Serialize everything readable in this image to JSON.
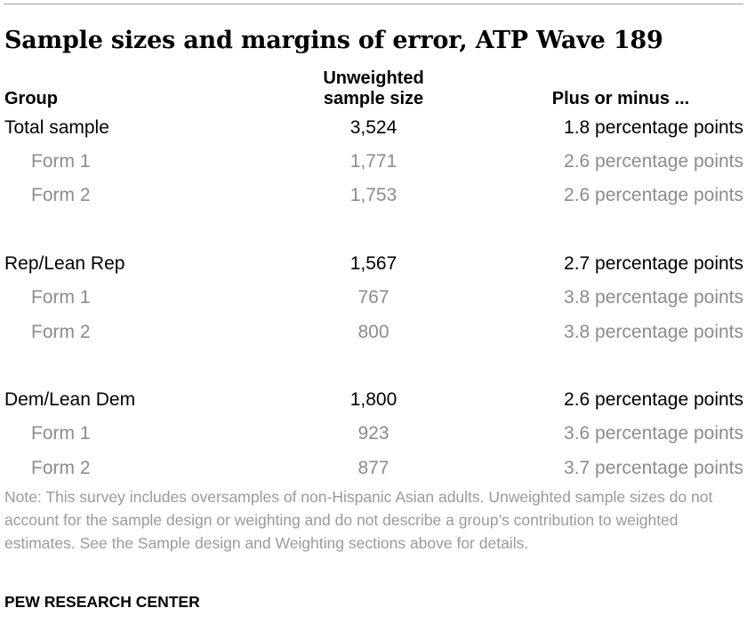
{
  "title": "Sample sizes and margins of error, ATP Wave 189",
  "headers": {
    "group": "Group",
    "size_line1": "Unweighted",
    "size_line2": "sample size",
    "moe": "Plus or minus ..."
  },
  "rows": [
    {
      "group": "Total sample",
      "size": "3,524",
      "moe": "1.8 percentage points"
    },
    {
      "group": "Form 1",
      "size": "1,771",
      "moe": "2.6 percentage points"
    },
    {
      "group": "Form 2",
      "size": "1,753",
      "moe": "2.6 percentage points"
    },
    {
      "group": "Rep/Lean Rep",
      "size": "1,567",
      "moe": "2.7 percentage points"
    },
    {
      "group": "Form 1",
      "size": "767",
      "moe": "3.8 percentage points"
    },
    {
      "group": "Form 2",
      "size": "800",
      "moe": "3.8 percentage points"
    },
    {
      "group": "Dem/Lean Dem",
      "size": "1,800",
      "moe": "2.6 percentage points"
    },
    {
      "group": "Form 1",
      "size": "923",
      "moe": "3.6 percentage points"
    },
    {
      "group": "Form 2",
      "size": "877",
      "moe": "3.7 percentage points"
    }
  ],
  "note": "Note: This survey includes oversamples of non-Hispanic Asian adults. Unweighted sample sizes do not account for the sample design or weighting and do not describe a group’s contribution to weighted estimates. See the Sample design and Weighting sections above for details.",
  "source": "PEW RESEARCH CENTER",
  "colors": {
    "primary_text": "#000000",
    "subgroup_text": "#8c8c8c",
    "note_text": "#9a9a9a",
    "rule": "#9a9a9a"
  }
}
